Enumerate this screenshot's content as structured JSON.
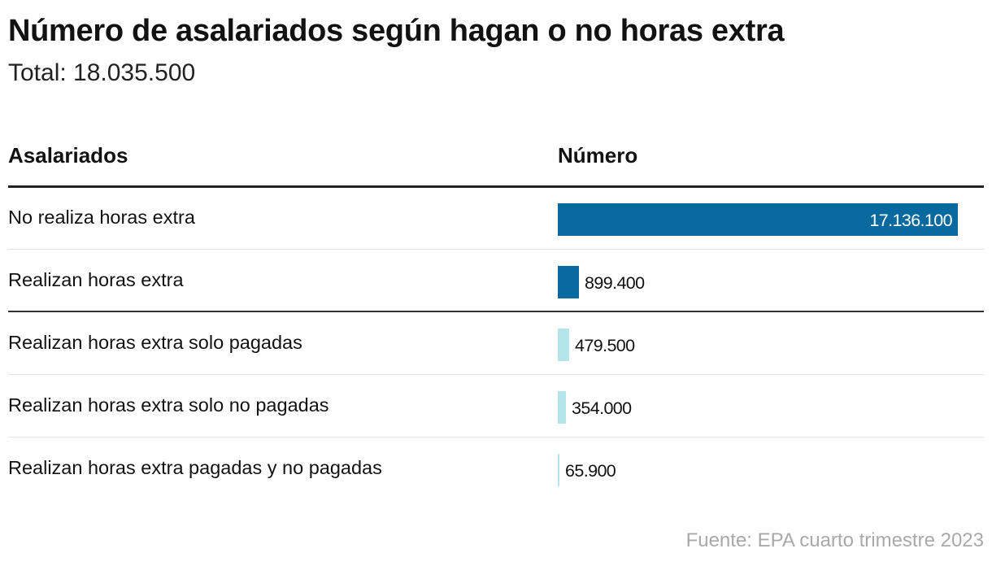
{
  "title": "Número de asalariados según hagan o no horas extra",
  "subtitle": "Total: 18.035.500",
  "source": "Fuente: EPA cuarto trimestre 2023",
  "colors": {
    "primary": "#07699d",
    "secondary": "#b3e5ea",
    "text": "#121212",
    "source": "#a9a9a9"
  },
  "chart_data": {
    "type": "table",
    "columns": [
      "Asalariados",
      "Número"
    ],
    "xlim": [
      0,
      17136100
    ],
    "rows": [
      {
        "label": "No realiza horas extra",
        "value": 17136100,
        "value_label": "17.136.100",
        "color": "#07699d",
        "label_inside": true
      },
      {
        "label": "Realizan horas extra",
        "value": 899400,
        "value_label": "899.400",
        "color": "#07699d",
        "label_inside": false
      },
      {
        "label": "Realizan horas extra solo pagadas",
        "value": 479500,
        "value_label": "479.500",
        "color": "#b3e5ea",
        "label_inside": false
      },
      {
        "label": "Realizan horas extra solo no pagadas",
        "value": 354000,
        "value_label": "354.000",
        "color": "#b3e5ea",
        "label_inside": false
      },
      {
        "label": "Realizan horas extra pagadas y no pagadas",
        "value": 65900,
        "value_label": "65.900",
        "color": "#b3e5ea",
        "label_inside": false
      }
    ]
  }
}
